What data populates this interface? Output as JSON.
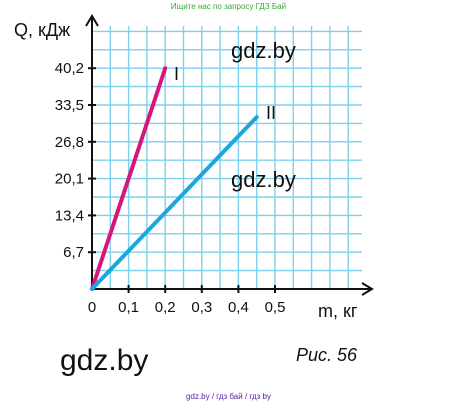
{
  "header_note": "Ищите нас по запросу ГДЗ Бай",
  "footer_note": "gdz.by  /  гдз бай  /  гдз by",
  "watermarks": [
    "gdz.by",
    "gdz.by",
    "gdz.by"
  ],
  "caption": "Рис.  56",
  "colors": {
    "series_I": "#d6167a",
    "series_II": "#1aa6de",
    "grid": "#7fd0ec",
    "axis": "#111111"
  },
  "chart_data": {
    "type": "line",
    "xlabel": "m, кг",
    "ylabel": "Q, кДж",
    "x_tick_labels": [
      "0",
      "0,1",
      "0,2",
      "0,3",
      "0,4",
      "0,5"
    ],
    "y_tick_labels": [
      "6,7",
      "13,4",
      "20,1",
      "26,8",
      "33,5",
      "40,2"
    ],
    "x_ticks": [
      0,
      0.1,
      0.2,
      0.3,
      0.4,
      0.5
    ],
    "y_ticks": [
      6.7,
      13.4,
      20.1,
      26.8,
      33.5,
      40.2
    ],
    "xlim": [
      0,
      0.55
    ],
    "ylim": [
      0,
      46.9
    ],
    "grid": true,
    "series": [
      {
        "name": "I",
        "x": [
          0,
          0.2
        ],
        "y": [
          0,
          40.2
        ]
      },
      {
        "name": "II",
        "x": [
          0,
          0.45
        ],
        "y": [
          0,
          31.3
        ]
      }
    ]
  }
}
